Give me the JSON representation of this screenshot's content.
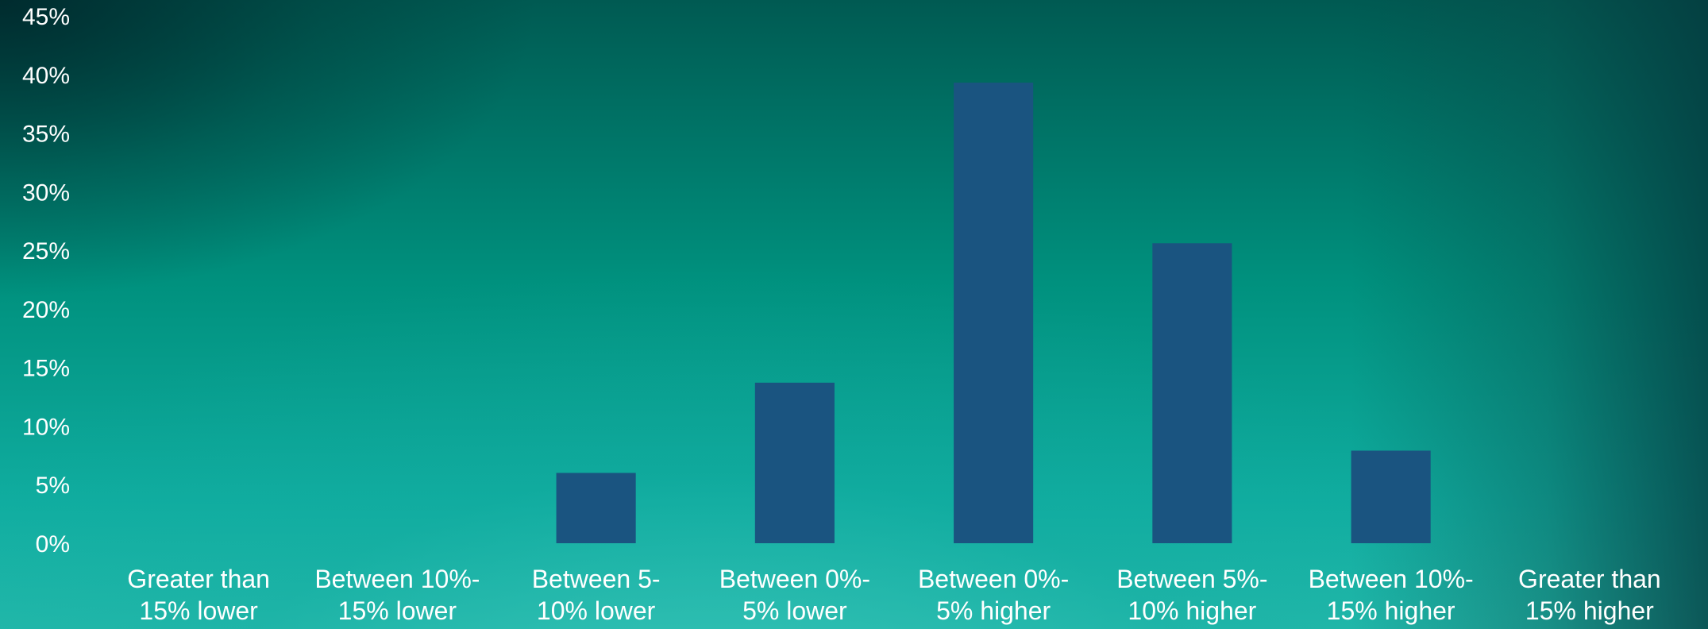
{
  "chart_data": {
    "type": "bar",
    "categories": [
      [
        "Greater than",
        "15% lower"
      ],
      [
        "Between 10%-",
        "15% lower"
      ],
      [
        "Between 5-",
        "10% lower"
      ],
      [
        "Between 0%-",
        "5% lower"
      ],
      [
        "Between 0%-",
        "5% higher"
      ],
      [
        "Between 5%-",
        "10% higher"
      ],
      [
        "Between 10%-",
        "15% higher"
      ],
      [
        "Greater than",
        "15% higher"
      ]
    ],
    "values": [
      0,
      0,
      6,
      13.7,
      39.3,
      25.6,
      7.9,
      0
    ],
    "ylim": [
      0,
      45
    ],
    "yticks": [
      0,
      5,
      10,
      15,
      20,
      25,
      30,
      35,
      40,
      45
    ],
    "ytick_labels": [
      "0%",
      "5%",
      "10%",
      "15%",
      "20%",
      "25%",
      "30%",
      "35%",
      "40%",
      "45%"
    ],
    "title": "",
    "xlabel": "",
    "ylabel": "",
    "grid": false,
    "bar_color": "#1a5480",
    "label_color": "#ffffff"
  }
}
